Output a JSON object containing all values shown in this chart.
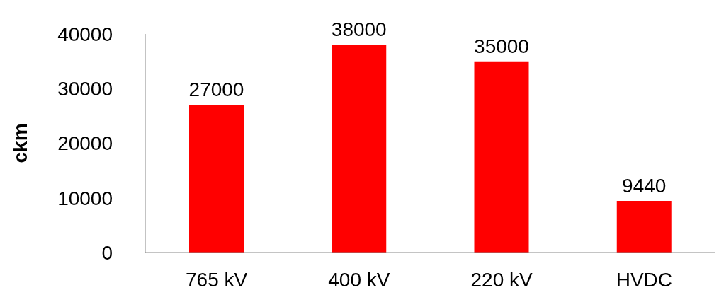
{
  "chart_data": {
    "type": "bar",
    "ylabel": "ckm",
    "categories": [
      "765 kV",
      "400 kV",
      "220 kV",
      "HVDC"
    ],
    "values": [
      27000,
      38000,
      35000,
      9440
    ],
    "color": "#ff0000",
    "ylim": [
      0,
      40000
    ],
    "yticks": [
      0,
      10000,
      20000,
      30000,
      40000
    ],
    "data_labels": true
  }
}
